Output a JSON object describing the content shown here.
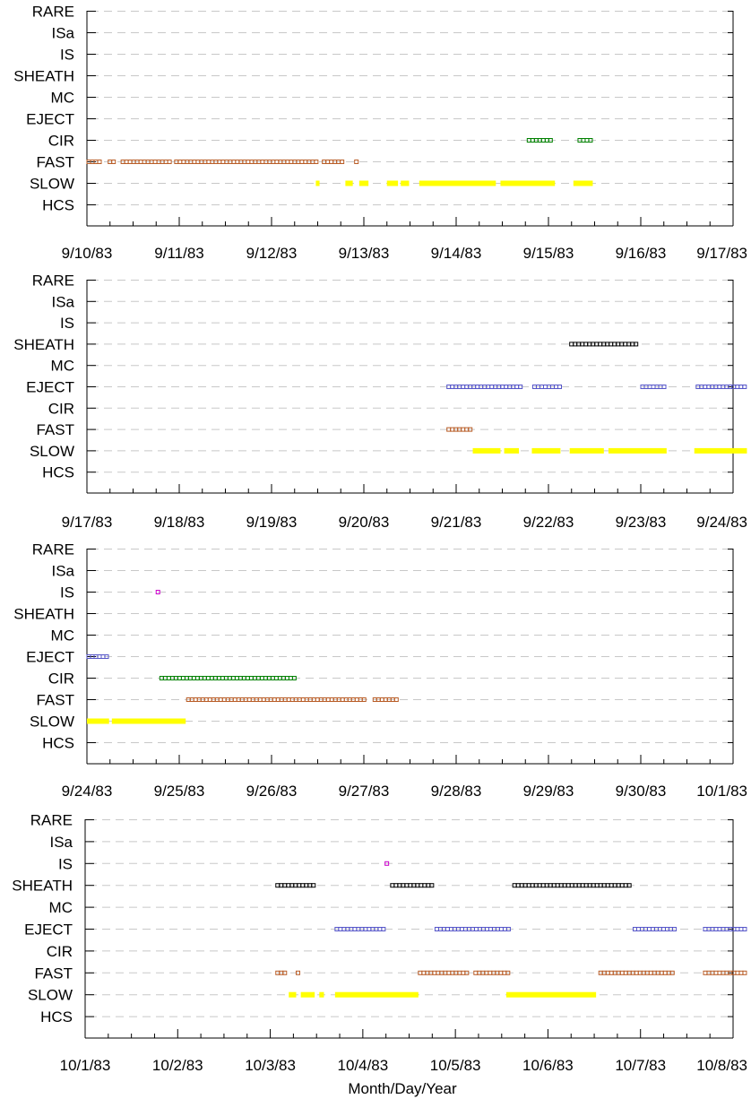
{
  "chart_data": [
    {
      "type": "event-timeline",
      "categories": [
        "RARE",
        "ISa",
        "IS",
        "SHEATH",
        "MC",
        "EJECT",
        "CIR",
        "FAST",
        "SLOW",
        "HCS"
      ],
      "xticks": [
        "9/10/83",
        "9/11/83",
        "9/12/83",
        "9/13/83",
        "9/14/83",
        "9/15/83",
        "9/16/83",
        "9/17/83"
      ],
      "xlim": [
        "9/10/83",
        "9/17/83"
      ],
      "grid": true,
      "series": [
        {
          "category": "CIR",
          "color": "#008000",
          "style": "open-square",
          "intervals": [
            [
              4.77,
              5.05
            ],
            [
              5.32,
              5.47
            ]
          ]
        },
        {
          "category": "FAST",
          "color": "#b85c26",
          "style": "open-square",
          "intervals": [
            [
              0.0,
              0.15
            ],
            [
              0.23,
              0.31
            ],
            [
              0.37,
              0.9
            ],
            [
              0.95,
              2.5
            ],
            [
              2.55,
              2.8
            ],
            [
              2.9,
              2.94
            ]
          ]
        },
        {
          "category": "SLOW",
          "color": "#ffff00",
          "style": "thick-bar",
          "intervals": [
            [
              2.48,
              2.52
            ],
            [
              2.8,
              2.88
            ],
            [
              2.95,
              3.05
            ],
            [
              3.25,
              3.37
            ],
            [
              3.4,
              3.49
            ],
            [
              3.6,
              4.43
            ],
            [
              4.48,
              5.07
            ],
            [
              5.27,
              5.48
            ]
          ]
        }
      ]
    },
    {
      "type": "event-timeline",
      "categories": [
        "RARE",
        "ISa",
        "IS",
        "SHEATH",
        "MC",
        "EJECT",
        "CIR",
        "FAST",
        "SLOW",
        "HCS"
      ],
      "xticks": [
        "9/17/83",
        "9/18/83",
        "9/19/83",
        "9/20/83",
        "9/21/83",
        "9/22/83",
        "9/23/83",
        "9/24/83"
      ],
      "xlim": [
        "9/17/83",
        "9/24/83"
      ],
      "grid": true,
      "series": [
        {
          "category": "SHEATH",
          "color": "#000000",
          "style": "open-square",
          "intervals": [
            [
              5.23,
              5.98
            ]
          ]
        },
        {
          "category": "EJECT",
          "color": "#5555c8",
          "style": "open-square",
          "intervals": [
            [
              3.9,
              4.72
            ],
            [
              4.83,
              5.13
            ],
            [
              6.0,
              6.28
            ],
            [
              6.6,
              7.15
            ]
          ]
        },
        {
          "category": "FAST",
          "color": "#b85c26",
          "style": "open-square",
          "intervals": [
            [
              3.9,
              4.17
            ]
          ]
        },
        {
          "category": "SLOW",
          "color": "#ffff00",
          "style": "thick-bar",
          "intervals": [
            [
              4.18,
              4.48
            ],
            [
              4.52,
              4.68
            ],
            [
              4.82,
              5.13
            ],
            [
              5.23,
              5.6
            ],
            [
              5.65,
              6.28
            ],
            [
              6.58,
              7.15
            ]
          ]
        }
      ]
    },
    {
      "type": "event-timeline",
      "categories": [
        "RARE",
        "ISa",
        "IS",
        "SHEATH",
        "MC",
        "EJECT",
        "CIR",
        "FAST",
        "SLOW",
        "HCS"
      ],
      "xticks": [
        "9/24/83",
        "9/25/83",
        "9/26/83",
        "9/27/83",
        "9/28/83",
        "9/29/83",
        "9/30/83",
        "10/1/83"
      ],
      "xlim": [
        "9/24/83",
        "10/1/83"
      ],
      "grid": true,
      "series": [
        {
          "category": "IS",
          "color": "#cc00cc",
          "style": "open-square",
          "intervals": [
            [
              0.75,
              0.77
            ]
          ]
        },
        {
          "category": "EJECT",
          "color": "#5555c8",
          "style": "open-square",
          "intervals": [
            [
              0.0,
              0.23
            ]
          ]
        },
        {
          "category": "CIR",
          "color": "#008000",
          "style": "open-square",
          "intervals": [
            [
              0.79,
              2.28
            ]
          ]
        },
        {
          "category": "FAST",
          "color": "#b85c26",
          "style": "open-square",
          "intervals": [
            [
              1.08,
              3.03
            ],
            [
              3.1,
              3.37
            ]
          ]
        },
        {
          "category": "SLOW",
          "color": "#ffff00",
          "style": "thick-bar",
          "intervals": [
            [
              0.0,
              0.24
            ],
            [
              0.27,
              1.07
            ]
          ]
        }
      ]
    },
    {
      "type": "event-timeline",
      "categories": [
        "RARE",
        "ISa",
        "IS",
        "SHEATH",
        "MC",
        "EJECT",
        "CIR",
        "FAST",
        "SLOW",
        "HCS"
      ],
      "xticks": [
        "10/1/83",
        "10/2/83",
        "10/3/83",
        "10/4/83",
        "10/5/83",
        "10/6/83",
        "10/7/83",
        "10/8/83"
      ],
      "xlim": [
        "10/1/83",
        "10/8/83"
      ],
      "xlabel": "Month/Day/Year",
      "grid": true,
      "series": [
        {
          "category": "IS",
          "color": "#cc00cc",
          "style": "open-square",
          "intervals": [
            [
              3.24,
              3.26
            ]
          ]
        },
        {
          "category": "SHEATH",
          "color": "#000000",
          "style": "open-square",
          "intervals": [
            [
              2.06,
              2.47
            ],
            [
              3.3,
              3.78
            ],
            [
              4.62,
              5.9
            ]
          ]
        },
        {
          "category": "EJECT",
          "color": "#5555c8",
          "style": "open-square",
          "intervals": [
            [
              2.7,
              3.24
            ],
            [
              3.78,
              4.6
            ],
            [
              5.92,
              6.38
            ],
            [
              6.68,
              7.15
            ]
          ]
        },
        {
          "category": "FAST",
          "color": "#b85c26",
          "style": "open-square",
          "intervals": [
            [
              2.06,
              2.18
            ],
            [
              2.28,
              2.31
            ],
            [
              3.6,
              4.14
            ],
            [
              4.2,
              4.57
            ],
            [
              5.55,
              6.38
            ],
            [
              6.68,
              7.15
            ]
          ]
        },
        {
          "category": "SLOW",
          "color": "#ffff00",
          "style": "thick-bar",
          "intervals": [
            [
              2.2,
              2.28
            ],
            [
              2.33,
              2.48
            ],
            [
              2.53,
              2.58
            ],
            [
              2.7,
              3.6
            ],
            [
              4.55,
              5.52
            ]
          ]
        }
      ]
    }
  ]
}
